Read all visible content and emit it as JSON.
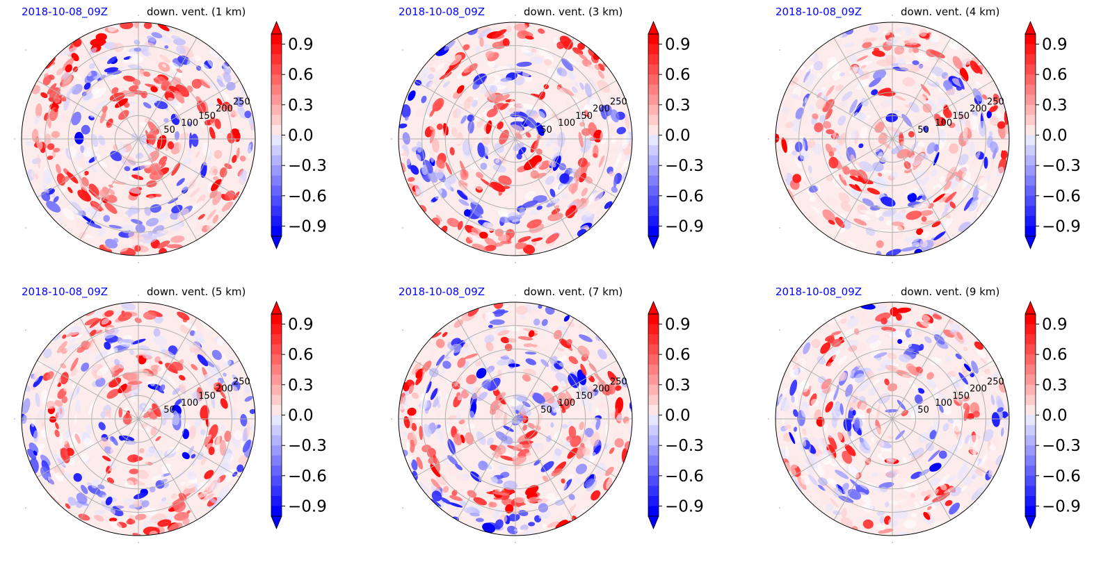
{
  "colors": {
    "date_label": "#0000ff",
    "positive": "#ff0000",
    "negative": "#0000ff",
    "neutral": "#ffffff",
    "grid": "#b0b0b0",
    "outline": "#000000"
  },
  "chart_data": [
    {
      "type": "heatmap",
      "projection": "polar",
      "title_left": "2018-10-08_09Z",
      "title_right": "down. vent. (1 km)",
      "radial_ticks": [
        "50",
        "100",
        "150",
        "200",
        "250"
      ],
      "colorbar": {
        "ticks": [
          "0.9",
          "0.6",
          "0.3",
          "0.0",
          "−0.3",
          "−0.6",
          "−0.9"
        ],
        "extend": "both",
        "range": [
          -1.0,
          1.0
        ],
        "levels": 20,
        "cmap": "bwr"
      },
      "grid": true
    },
    {
      "type": "heatmap",
      "projection": "polar",
      "title_left": "2018-10-08_09Z",
      "title_right": "down. vent. (3 km)",
      "radial_ticks": [
        "50",
        "100",
        "150",
        "200",
        "250"
      ],
      "colorbar": {
        "ticks": [
          "0.9",
          "0.6",
          "0.3",
          "0.0",
          "−0.3",
          "−0.6",
          "−0.9"
        ],
        "extend": "both",
        "range": [
          -1.0,
          1.0
        ],
        "levels": 20,
        "cmap": "bwr"
      },
      "grid": true
    },
    {
      "type": "heatmap",
      "projection": "polar",
      "title_left": "2018-10-08_09Z",
      "title_right": "down. vent. (4 km)",
      "radial_ticks": [
        "50",
        "100",
        "150",
        "200",
        "250"
      ],
      "colorbar": {
        "ticks": [
          "0.9",
          "0.6",
          "0.3",
          "0.0",
          "−0.3",
          "−0.6",
          "−0.9"
        ],
        "extend": "both",
        "range": [
          -1.0,
          1.0
        ],
        "levels": 20,
        "cmap": "bwr"
      },
      "grid": true
    },
    {
      "type": "heatmap",
      "projection": "polar",
      "title_left": "2018-10-08_09Z",
      "title_right": "down. vent. (5 km)",
      "radial_ticks": [
        "50",
        "100",
        "150",
        "200",
        "250"
      ],
      "colorbar": {
        "ticks": [
          "0.9",
          "0.6",
          "0.3",
          "0.0",
          "−0.3",
          "−0.6",
          "−0.9"
        ],
        "extend": "both",
        "range": [
          -1.0,
          1.0
        ],
        "levels": 20,
        "cmap": "bwr"
      },
      "grid": true
    },
    {
      "type": "heatmap",
      "projection": "polar",
      "title_left": "2018-10-08_09Z",
      "title_right": "down. vent. (7 km)",
      "radial_ticks": [
        "50",
        "100",
        "150",
        "200",
        "250"
      ],
      "colorbar": {
        "ticks": [
          "0.9",
          "0.6",
          "0.3",
          "0.0",
          "−0.3",
          "−0.6",
          "−0.9"
        ],
        "extend": "both",
        "range": [
          -1.0,
          1.0
        ],
        "levels": 20,
        "cmap": "bwr"
      },
      "grid": true
    },
    {
      "type": "heatmap",
      "projection": "polar",
      "title_left": "2018-10-08_09Z",
      "title_right": "down. vent. (9 km)",
      "radial_ticks": [
        "50",
        "100",
        "150",
        "200",
        "250"
      ],
      "colorbar": {
        "ticks": [
          "0.9",
          "0.6",
          "0.3",
          "0.0",
          "−0.3",
          "−0.6",
          "−0.9"
        ],
        "extend": "both",
        "range": [
          -1.0,
          1.0
        ],
        "levels": 20,
        "cmap": "bwr"
      },
      "grid": true
    }
  ]
}
